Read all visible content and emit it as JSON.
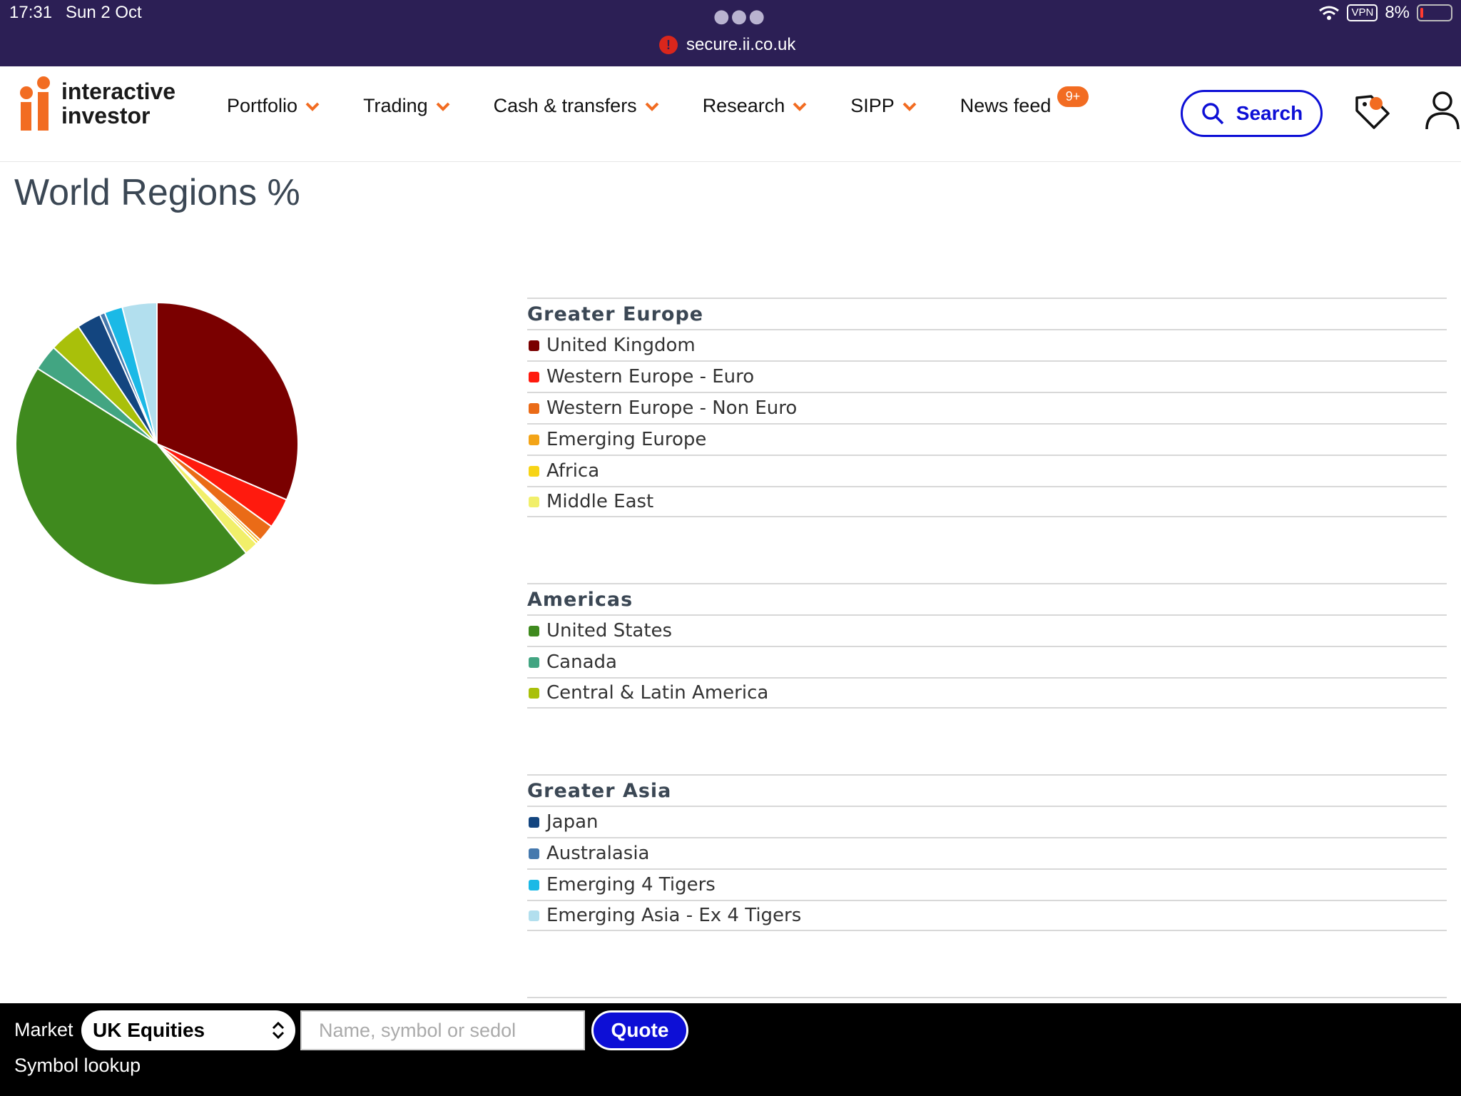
{
  "status_bar": {
    "time": "17:31",
    "date": "Sun 2 Oct",
    "url": "secure.ii.co.uk",
    "vpn": "VPN",
    "battery": "8%"
  },
  "header": {
    "logo_line1": "interactive",
    "logo_line2": "investor",
    "nav": {
      "portfolio": "Portfolio",
      "trading": "Trading",
      "cash": "Cash & transfers",
      "research": "Research",
      "sipp": "SIPP",
      "newsfeed": "News feed",
      "newsfeed_badge": "9+"
    },
    "search_label": "Search"
  },
  "page_title": "World Regions %",
  "regions": {
    "greater_europe": {
      "title": "Greater Europe",
      "items": [
        "United Kingdom",
        "Western Europe - Euro",
        "Western Europe - Non Euro",
        "Emerging Europe",
        "Africa",
        "Middle East"
      ],
      "colors": [
        "#7a0000",
        "#ff1a0e",
        "#ea6b17",
        "#f3a417",
        "#f7d416",
        "#f1ef6a"
      ]
    },
    "americas": {
      "title": "Americas",
      "items": [
        "United States",
        "Canada",
        "Central & Latin America"
      ],
      "colors": [
        "#3f8a1e",
        "#42a582",
        "#a9c00a"
      ]
    },
    "greater_asia": {
      "title": "Greater Asia",
      "items": [
        "Japan",
        "Australasia",
        "Emerging 4 Tigers",
        "Emerging Asia - Ex 4 Tigers"
      ],
      "colors": [
        "#13457f",
        "#4579ae",
        "#1bb9e6",
        "#b2dfee"
      ]
    }
  },
  "chart_data": {
    "type": "pie",
    "labels": [
      "United Kingdom",
      "Western Europe - Euro",
      "Western Europe - Non Euro",
      "Emerging Europe",
      "Africa",
      "Middle East",
      "United States",
      "Canada",
      "Central & Latin America",
      "Japan",
      "Australasia",
      "Emerging 4 Tigers",
      "Emerging Asia - Ex 4 Tigers"
    ],
    "values": [
      31.8,
      3.5,
      2.0,
      0.3,
      0.3,
      1.6,
      45.3,
      3.0,
      3.7,
      2.8,
      0.6,
      2.1,
      4.0
    ],
    "colors": [
      "#7a0000",
      "#ff1a0e",
      "#ea6b17",
      "#f3a417",
      "#f7d416",
      "#f1ef6a",
      "#3f8a1e",
      "#42a582",
      "#a9c00a",
      "#13457f",
      "#4579ae",
      "#1bb9e6",
      "#b2dfee"
    ]
  },
  "bottom_bar": {
    "market_label": "Market",
    "market_value": "UK Equities",
    "input_placeholder": "Name, symbol or sedol",
    "quote_label": "Quote",
    "lookup_label": "Symbol lookup"
  }
}
